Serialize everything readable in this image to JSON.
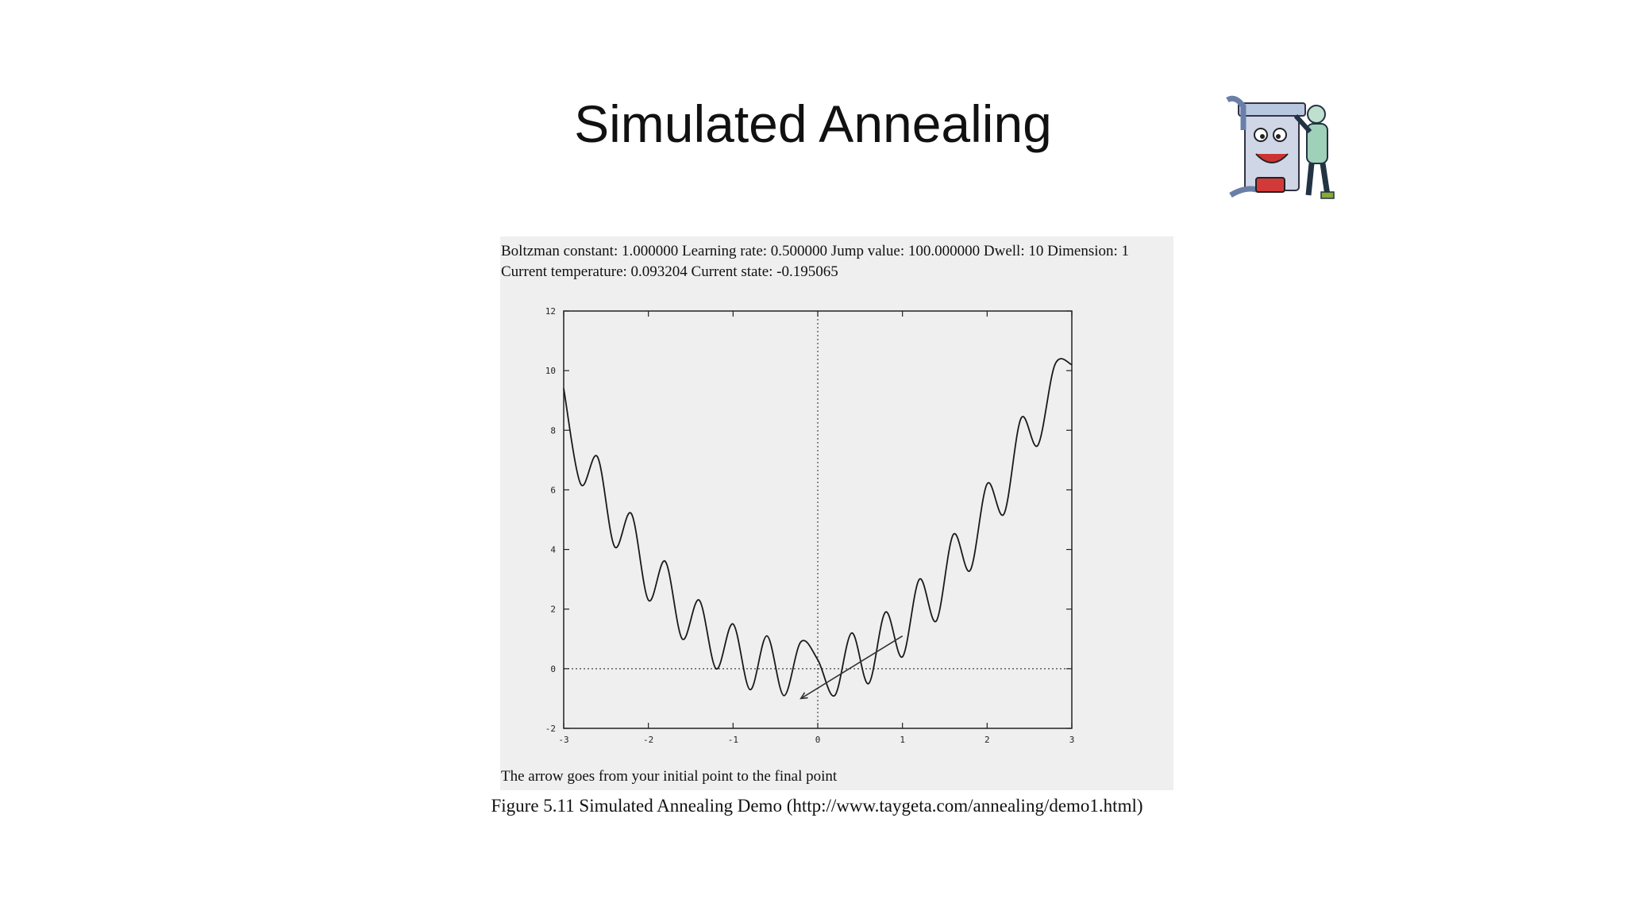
{
  "slide": {
    "title": "Simulated Annealing"
  },
  "figure": {
    "params_line": "Boltzman constant: 1.000000 Learning rate: 0.500000 Jump value: 100.000000 Dwell: 10 Dimension: 1",
    "state_line": "Current temperature: 0.093204 Current state: -0.195065",
    "footnote": "The arrow goes from your initial point to the final point",
    "caption": "Figure 5.11 Simulated Annealing Demo (http://www.taygeta.com/annealing/demo1.html)"
  },
  "colors": {
    "panel_background": "#efefef",
    "curve": "#1a1a1a",
    "arrow": "#333333"
  },
  "clipart_icon": "cartoon-machine-icon",
  "chart_data": {
    "type": "line",
    "title": "",
    "xlabel": "",
    "ylabel": "",
    "xlim": [
      -3,
      3
    ],
    "ylim": [
      -2,
      12
    ],
    "x_ticks": [
      -3,
      -2,
      -1,
      0,
      1,
      2,
      3
    ],
    "y_ticks": [
      -2,
      0,
      2,
      4,
      6,
      8,
      10,
      12
    ],
    "x_tick_labels": [
      "-3",
      "-2",
      "-1",
      "0",
      "1",
      "2",
      "3"
    ],
    "y_tick_labels": [
      "-2",
      "0",
      "2",
      "4",
      "6",
      "8",
      "10",
      "12"
    ],
    "grid": false,
    "zero_lines": "dotted",
    "series": [
      {
        "x": [
          -3.0,
          -2.8,
          -2.6,
          -2.4,
          -2.2,
          -2.0,
          -1.8,
          -1.6,
          -1.4,
          -1.2,
          -1.0,
          -0.8,
          -0.6,
          -0.4,
          -0.2,
          0.0,
          0.2,
          0.4,
          0.6,
          0.8,
          1.0,
          1.2,
          1.4,
          1.6,
          1.8,
          2.0,
          2.2,
          2.4,
          2.6,
          2.8,
          3.0
        ],
        "y": [
          9.4,
          6.2,
          7.1,
          4.1,
          5.2,
          2.3,
          3.6,
          1.0,
          2.3,
          0.0,
          1.5,
          -0.7,
          1.1,
          -0.9,
          0.9,
          0.3,
          -0.9,
          1.2,
          -0.5,
          1.9,
          0.4,
          3.0,
          1.6,
          4.5,
          3.3,
          6.2,
          5.2,
          8.4,
          7.5,
          10.2,
          10.2
        ]
      }
    ],
    "arrow": {
      "from": [
        1.0,
        1.1
      ],
      "to": [
        -0.2,
        -1.0
      ]
    }
  }
}
